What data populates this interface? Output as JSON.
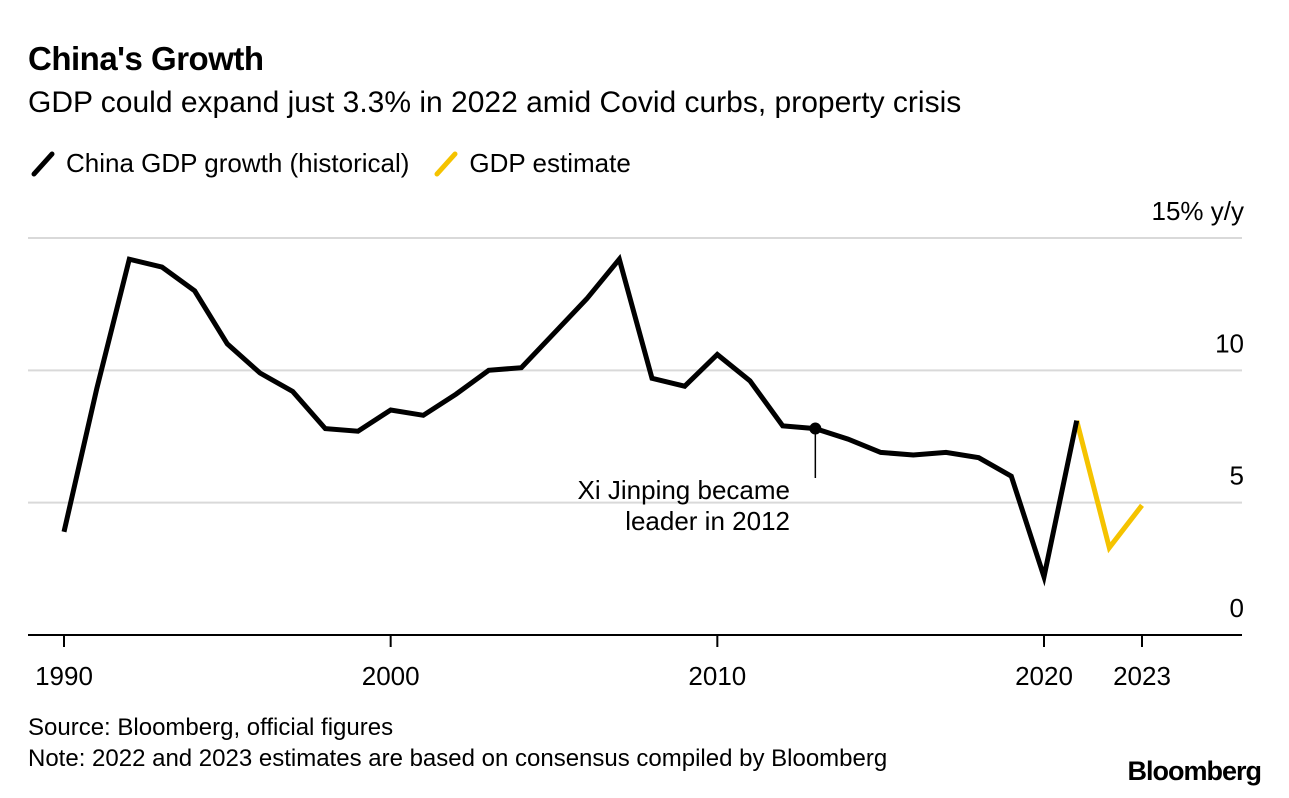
{
  "header": {
    "title": "China's Growth",
    "subtitle": "GDP could expand just 3.3% in 2022 amid Covid curbs, property crisis"
  },
  "legend": {
    "historical": "China GDP growth (historical)",
    "estimate": "GDP estimate"
  },
  "colors": {
    "historical": "#000000",
    "estimate": "#F5C300",
    "grid": "#d9d9d9"
  },
  "chart_data": {
    "type": "line",
    "title": "China's Growth",
    "xlabel": "",
    "ylabel": "% y/y",
    "xlim": [
      1989,
      2025
    ],
    "ylim": [
      0,
      15
    ],
    "x_ticks": [
      {
        "value": 1990,
        "label": "1990"
      },
      {
        "value": 2000,
        "label": "2000"
      },
      {
        "value": 2010,
        "label": "2010"
      },
      {
        "value": 2020,
        "label": "2020"
      },
      {
        "value": 2023,
        "label": "2023"
      }
    ],
    "y_ticks": [
      {
        "value": 15,
        "label": "15% y/y"
      },
      {
        "value": 10,
        "label": "10"
      },
      {
        "value": 5,
        "label": "5"
      },
      {
        "value": 0,
        "label": "0"
      }
    ],
    "series": [
      {
        "name": "China GDP growth (historical)",
        "x": [
          1990,
          1991,
          1992,
          1993,
          1994,
          1995,
          1996,
          1997,
          1998,
          1999,
          2000,
          2001,
          2002,
          2003,
          2004,
          2005,
          2006,
          2007,
          2008,
          2009,
          2010,
          2011,
          2012,
          2013,
          2014,
          2015,
          2016,
          2017,
          2018,
          2019,
          2020,
          2021
        ],
        "values": [
          3.9,
          9.3,
          14.2,
          13.9,
          13.0,
          11.0,
          9.9,
          9.2,
          7.8,
          7.7,
          8.5,
          8.3,
          9.1,
          10.0,
          10.1,
          11.4,
          12.7,
          14.2,
          9.7,
          9.4,
          10.6,
          9.6,
          7.9,
          7.8,
          7.4,
          6.9,
          6.8,
          6.9,
          6.7,
          6.0,
          2.2,
          8.1
        ]
      },
      {
        "name": "GDP estimate",
        "x": [
          2021,
          2022,
          2023
        ],
        "values": [
          8.1,
          3.3,
          4.9
        ]
      }
    ],
    "annotations": [
      {
        "x": 2013,
        "y": 7.8,
        "text_line1": "Xi Jinping became",
        "text_line2": "leader in 2012"
      }
    ]
  },
  "footer": {
    "source": "Source: Bloomberg, official figures",
    "note": "Note: 2022 and 2023 estimates are based on consensus compiled by Bloomberg",
    "brand": "Bloomberg"
  }
}
